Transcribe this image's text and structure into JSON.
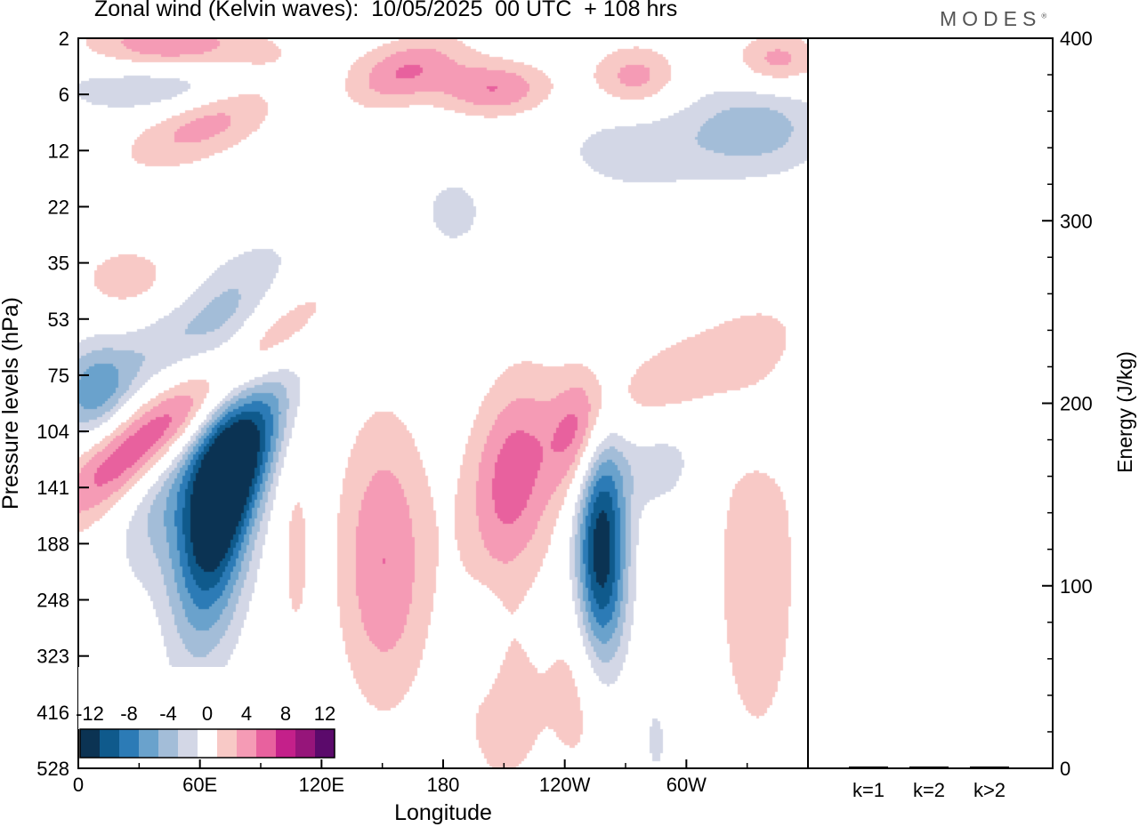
{
  "header": {
    "title": "Zonal wind (Kelvin waves):  10/05/2025  00 UTC  + 108 hrs",
    "brand": "MODES"
  },
  "colors": {
    "neg": [
      "#0b3353",
      "#0f5a8c",
      "#2c7bb6",
      "#6aa2cc",
      "#a3bdd8",
      "#d3d7e6"
    ],
    "zero": "#ffffff",
    "pos": [
      "#f8c9c6",
      "#f59bb5",
      "#e8619e",
      "#c4208a",
      "#96157a",
      "#5b0a6b"
    ]
  },
  "chart_data": [
    {
      "type": "heatmap",
      "title": "Zonal wind (Kelvin waves):  10/05/2025  00 UTC  + 108 hrs",
      "xlabel": "Longitude",
      "ylabel": "Pressure levels (hPa)",
      "x_ticks": [
        "0",
        "60E",
        "120E",
        "180",
        "120W",
        "60W"
      ],
      "x_tick_values": [
        0,
        60,
        120,
        180,
        240,
        300
      ],
      "xlim": [
        0,
        360
      ],
      "y_ticks": [
        "2",
        "6",
        "12",
        "22",
        "35",
        "53",
        "75",
        "104",
        "141",
        "188",
        "248",
        "323",
        "416",
        "528"
      ],
      "colorbar": {
        "labels": [
          "-12",
          "-8",
          "-4",
          "0",
          "4",
          "8",
          "12"
        ],
        "levels": [
          -14,
          -12,
          -10,
          -8,
          -6,
          -4,
          -2,
          2,
          4,
          6,
          8,
          10,
          12,
          14
        ]
      },
      "features": [
        {
          "lon": 68,
          "lev": 8.3,
          "value": -14,
          "slope": 0.045,
          "lon_width": 14,
          "lev_width": 1.6
        },
        {
          "lon": 85,
          "lev": 7.3,
          "value": -8,
          "slope": 0.045,
          "lon_width": 16,
          "lev_width": 0.8
        },
        {
          "lon": 40,
          "lev": 8.2,
          "value": -4,
          "slope": 0.03,
          "lon_width": 15,
          "lev_width": 1.0
        },
        {
          "lon": 57,
          "lev": 6.6,
          "value": 8,
          "slope": 0.03,
          "lon_width": 40,
          "lev_width": 0.5
        },
        {
          "lon": 20,
          "lev": 7.2,
          "value": 4,
          "slope": 0.03,
          "lon_width": 25,
          "lev_width": 0.5
        },
        {
          "lon": 45,
          "lev": 5.4,
          "value": -4,
          "slope": 0.025,
          "lon_width": 45,
          "lev_width": 0.6
        },
        {
          "lon": 8,
          "lev": 6.2,
          "value": -5,
          "slope": 0,
          "lon_width": 12,
          "lev_width": 0.6
        },
        {
          "lon": 25,
          "lev": 4.3,
          "value": 3,
          "slope": 0,
          "lon_width": 20,
          "lev_width": 0.5
        },
        {
          "lon": 258,
          "lev": 9.2,
          "value": -14,
          "slope": 0,
          "lon_width": 9,
          "lev_width": 1.6
        },
        {
          "lon": 151,
          "lev": 9.3,
          "value": 6,
          "slope": 0,
          "lon_width": 16,
          "lev_width": 1.8
        },
        {
          "lon": 107,
          "lev": 9.1,
          "value": 2.5,
          "slope": 0,
          "lon_width": 6,
          "lev_width": 1.5
        },
        {
          "lon": 214,
          "lev": 7.9,
          "value": 7,
          "slope": 0.02,
          "lon_width": 16,
          "lev_width": 1.3
        },
        {
          "lon": 248,
          "lev": 7.0,
          "value": 6,
          "slope": 0.02,
          "lon_width": 10,
          "lev_width": 0.8
        },
        {
          "lon": 300,
          "lev": 6.0,
          "value": 3.5,
          "slope": 0.015,
          "lon_width": 40,
          "lev_width": 0.6
        },
        {
          "lon": 335,
          "lev": 9.5,
          "value": 4,
          "slope": 0,
          "lon_width": 14,
          "lev_width": 2.2
        },
        {
          "lon": 285,
          "lev": 7.6,
          "value": -3,
          "slope": 0,
          "lon_width": 14,
          "lev_width": 0.6
        },
        {
          "lon": 340,
          "lev": 7.0,
          "value": -2.5,
          "slope": 0,
          "lon_width": 25,
          "lev_width": 0.5
        },
        {
          "lon": 210,
          "lev": 12.0,
          "value": 3.5,
          "slope": 0,
          "lon_width": 14,
          "lev_width": 1.0
        },
        {
          "lon": 250,
          "lev": 11.5,
          "value": 4,
          "slope": 0,
          "lon_width": 12,
          "lev_width": 1.2
        },
        {
          "lon": 200,
          "lev": 10.8,
          "value": -3,
          "slope": 0,
          "lon_width": 6,
          "lev_width": 0.6
        },
        {
          "lon": 285,
          "lev": 12.5,
          "value": -2.5,
          "slope": 0,
          "lon_width": 5,
          "lev_width": 0.6
        },
        {
          "lon": 70,
          "lev": 1.3,
          "value": 6,
          "slope": 0.015,
          "lon_width": 30,
          "lev_width": 0.5
        },
        {
          "lon": 45,
          "lev": 0.2,
          "value": 7,
          "slope": 0,
          "lon_width": 30,
          "lev_width": 0.4
        },
        {
          "lon": 50,
          "lev": 0.8,
          "value": -6,
          "slope": 0,
          "lon_width": 40,
          "lev_width": 0.4
        },
        {
          "lon": 160,
          "lev": 0.6,
          "value": 6,
          "slope": 0.01,
          "lon_width": 20,
          "lev_width": 0.4
        },
        {
          "lon": 205,
          "lev": 0.9,
          "value": 6,
          "slope": 0,
          "lon_width": 20,
          "lev_width": 0.35
        },
        {
          "lon": 275,
          "lev": 0.7,
          "value": 5,
          "slope": 0,
          "lon_width": 15,
          "lev_width": 0.4
        },
        {
          "lon": 335,
          "lev": 1.6,
          "value": -5,
          "slope": 0,
          "lon_width": 25,
          "lev_width": 0.6
        },
        {
          "lon": 345,
          "lev": 0.4,
          "value": 5,
          "slope": 0,
          "lon_width": 15,
          "lev_width": 0.35
        },
        {
          "lon": 275,
          "lev": 2.0,
          "value": -3,
          "slope": 0,
          "lon_width": 30,
          "lev_width": 0.6
        },
        {
          "lon": 185,
          "lev": 3.1,
          "value": -3,
          "slope": 0,
          "lon_width": 12,
          "lev_width": 0.5
        }
      ]
    },
    {
      "type": "bar",
      "categories": [
        "k=1",
        "k=2",
        "k>2"
      ],
      "values": [
        0.5,
        0.5,
        0.5
      ],
      "ylabel": "Energy (J/kg)",
      "ylim": [
        0,
        400
      ],
      "y_ticks": [
        "0",
        "100",
        "200",
        "300",
        "400"
      ]
    }
  ]
}
